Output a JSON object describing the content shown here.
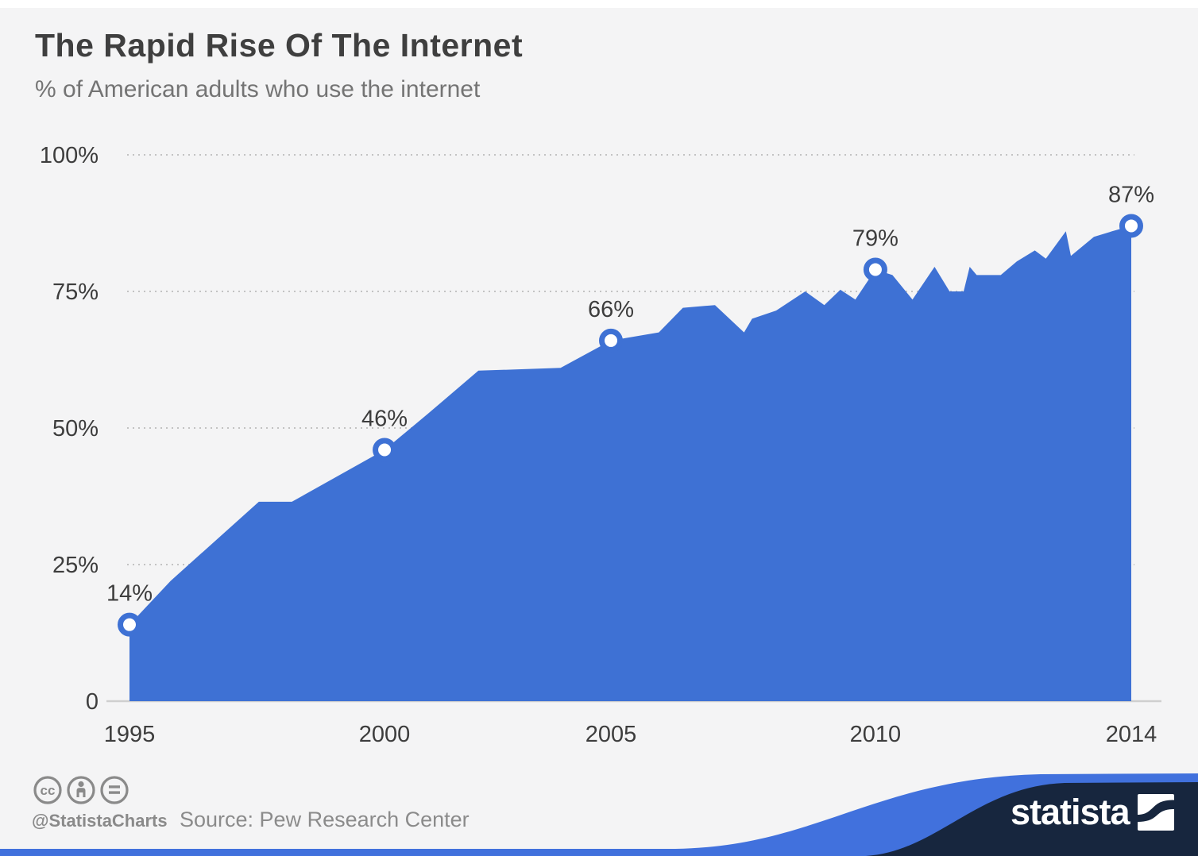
{
  "chart_data": {
    "type": "area",
    "title": "The Rapid Rise Of The Internet",
    "subtitle": "% of American adults who use the internet",
    "xlabel": "",
    "ylabel": "",
    "ylim": [
      0,
      100
    ],
    "grid": "horizontal-dotted",
    "legend": "none",
    "yticks": [
      {
        "value": 100,
        "label": "100%"
      },
      {
        "value": 75,
        "label": "75%"
      },
      {
        "value": 50,
        "label": "50%"
      },
      {
        "value": 25,
        "label": "25%"
      },
      {
        "value": 0,
        "label": "0"
      }
    ],
    "xticks": [
      {
        "xf": 0.0,
        "label": "1995"
      },
      {
        "xf": 0.2544,
        "label": "2000"
      },
      {
        "xf": 0.4802,
        "label": "2005"
      },
      {
        "xf": 0.744,
        "label": "2010"
      },
      {
        "xf": 0.9992,
        "label": "2014"
      }
    ],
    "labeled_points": [
      {
        "xf": 0.0,
        "year": "1995",
        "value": 14,
        "label": "14%"
      },
      {
        "xf": 0.2544,
        "year": "2000",
        "value": 46,
        "label": "46%"
      },
      {
        "xf": 0.4802,
        "year": "2005",
        "value": 66,
        "label": "66%"
      },
      {
        "xf": 0.744,
        "year": "2010",
        "value": 79,
        "label": "79%"
      },
      {
        "xf": 0.9992,
        "year": "2014",
        "value": 87,
        "label": "87%"
      }
    ],
    "series": [
      [
        0.0,
        14
      ],
      [
        0.041,
        22
      ],
      [
        0.129,
        36.5
      ],
      [
        0.162,
        36.5
      ],
      [
        0.2544,
        46
      ],
      [
        0.297,
        52.5
      ],
      [
        0.348,
        60.5
      ],
      [
        0.43,
        61
      ],
      [
        0.4802,
        66
      ],
      [
        0.528,
        67.5
      ],
      [
        0.552,
        72
      ],
      [
        0.584,
        72.5
      ],
      [
        0.613,
        67.5
      ],
      [
        0.621,
        70
      ],
      [
        0.645,
        71.5
      ],
      [
        0.674,
        75
      ],
      [
        0.693,
        72.5
      ],
      [
        0.709,
        75.3
      ],
      [
        0.724,
        73.5
      ],
      [
        0.744,
        79
      ],
      [
        0.761,
        78
      ],
      [
        0.781,
        73.5
      ],
      [
        0.803,
        79.5
      ],
      [
        0.818,
        75
      ],
      [
        0.832,
        75
      ],
      [
        0.838,
        79.5
      ],
      [
        0.845,
        78
      ],
      [
        0.869,
        78
      ],
      [
        0.885,
        80.5
      ],
      [
        0.903,
        82.5
      ],
      [
        0.914,
        81
      ],
      [
        0.934,
        86
      ],
      [
        0.939,
        81.5
      ],
      [
        0.962,
        85
      ],
      [
        0.98,
        86
      ],
      [
        0.9992,
        87
      ]
    ]
  },
  "footer": {
    "handle": "@StatistaCharts",
    "source": "Source: Pew Research Center",
    "brand": "statista",
    "license_icons": [
      "cc-icon",
      "attribution-icon",
      "no-derivatives-icon"
    ]
  },
  "colors": {
    "background": "#f4f4f5",
    "top_strip": "#ffffff",
    "area_blue": "#3e71d4",
    "marker_ring": "#3e71d4",
    "marker_fill": "#ffffff",
    "grid": "#c3c3c3",
    "axis_line": "#cfcfcf",
    "title_text": "#3f3f3f",
    "subtitle_text": "#747474",
    "axis_text": "#3d3d3d",
    "point_label_text": "#3d3d3d",
    "license_gray": "#8a8a8a",
    "source_text": "#8b8b8b",
    "wave_navy": "#17263e",
    "wave_blue": "#4171dd",
    "brand_text": "#ffffff"
  }
}
